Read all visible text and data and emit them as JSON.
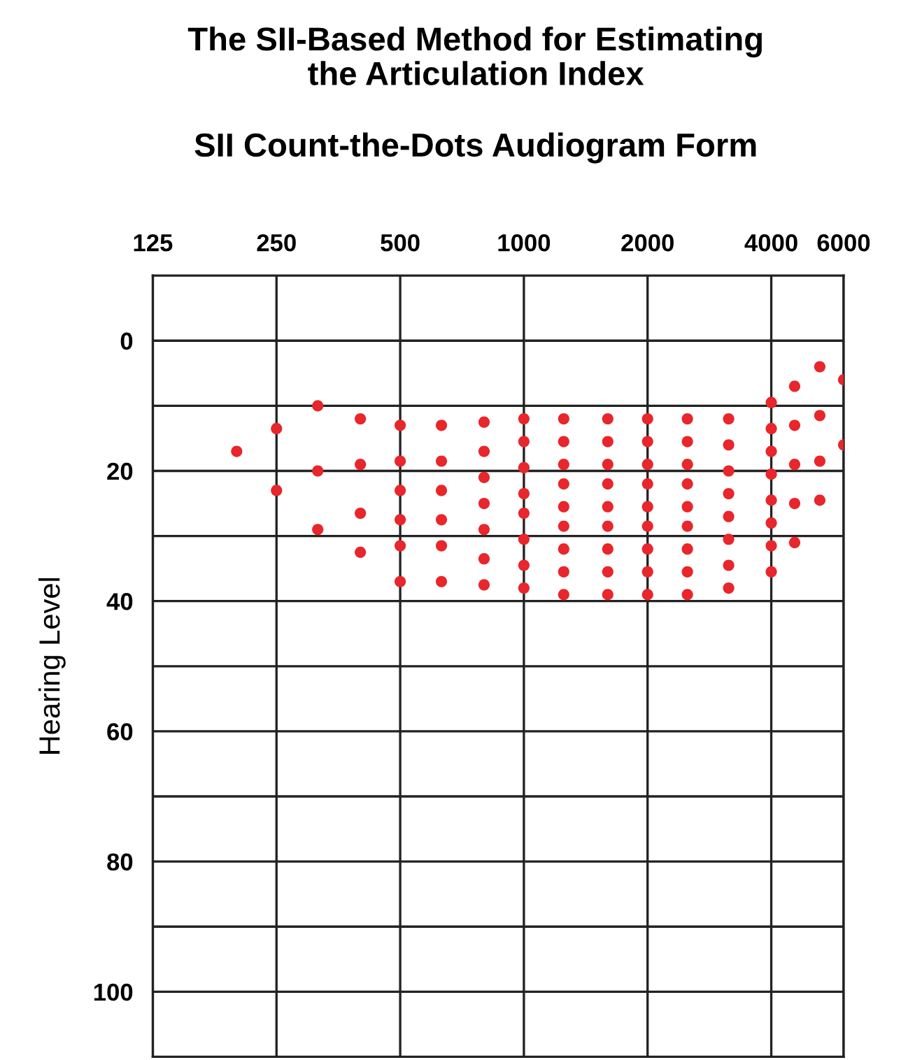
{
  "chart_data": {
    "type": "scatter",
    "title": "The SII-Based Method for Estimating\nthe Articulation Index",
    "subtitle": "SII Count-the-Dots Audiogram Form",
    "ylabel": "Hearing Level",
    "log": "x",
    "xlim": [
      125,
      6000
    ],
    "xticks": [
      125,
      250,
      500,
      1000,
      2000,
      4000,
      6000
    ],
    "ylim": [
      110,
      -10
    ],
    "yticks": [
      0,
      {
        "value": 10,
        "label": null
      },
      20,
      {
        "value": 30,
        "label": null
      },
      40,
      {
        "value": 50,
        "label": null
      },
      60,
      {
        "value": 70,
        "label": null
      },
      80,
      {
        "value": 90,
        "label": null
      },
      100
    ],
    "grid": true,
    "marker": "circle",
    "series": [
      {
        "color": "#e8262b",
        "x": [
          200,
          250,
          250,
          315,
          315,
          315,
          400,
          400,
          400,
          400,
          500,
          500,
          500,
          500,
          500,
          500,
          630,
          630,
          630,
          630,
          630,
          630,
          800,
          800,
          800,
          800,
          800,
          800,
          800,
          1000,
          1000,
          1000,
          1000,
          1000,
          1000,
          1000,
          1000,
          1250,
          1250,
          1250,
          1250,
          1250,
          1250,
          1250,
          1250,
          1250,
          1600,
          1600,
          1600,
          1600,
          1600,
          1600,
          1600,
          1600,
          1600,
          2000,
          2000,
          2000,
          2000,
          2000,
          2000,
          2000,
          2000,
          2000,
          2500,
          2500,
          2500,
          2500,
          2500,
          2500,
          2500,
          2500,
          2500,
          3150,
          3150,
          3150,
          3150,
          3150,
          3150,
          3150,
          3150,
          4000,
          4000,
          4000,
          4000,
          4000,
          4000,
          4000,
          4000,
          4560,
          4560,
          4560,
          4560,
          4560,
          5250,
          5250,
          5250,
          5250,
          6000,
          6000
        ],
        "values": [
          17,
          13.5,
          23,
          10,
          20,
          29,
          12,
          19,
          26.5,
          32.5,
          13,
          18.5,
          23,
          27.5,
          31.5,
          37,
          13,
          18.5,
          23,
          27.5,
          31.5,
          37,
          12.5,
          17,
          21,
          25,
          29,
          33.5,
          37.5,
          12,
          15.5,
          19.5,
          23.5,
          26.5,
          30.5,
          34.5,
          38,
          12,
          15.5,
          19,
          22,
          25.5,
          28.5,
          32,
          35.5,
          39,
          12,
          15.5,
          19,
          22,
          25.5,
          28.5,
          32,
          35.5,
          39,
          12,
          15.5,
          19,
          22,
          25.5,
          28.5,
          32,
          35.5,
          39,
          12,
          15.5,
          19,
          22,
          25.5,
          28.5,
          32,
          35.5,
          39,
          12,
          16,
          20,
          23.5,
          27,
          30.5,
          34.5,
          38,
          9.5,
          13.5,
          17,
          20.5,
          24.5,
          28,
          31.5,
          35.5,
          7,
          13,
          19,
          25,
          31,
          4,
          11.5,
          18.5,
          24.5,
          6,
          16
        ]
      }
    ]
  }
}
